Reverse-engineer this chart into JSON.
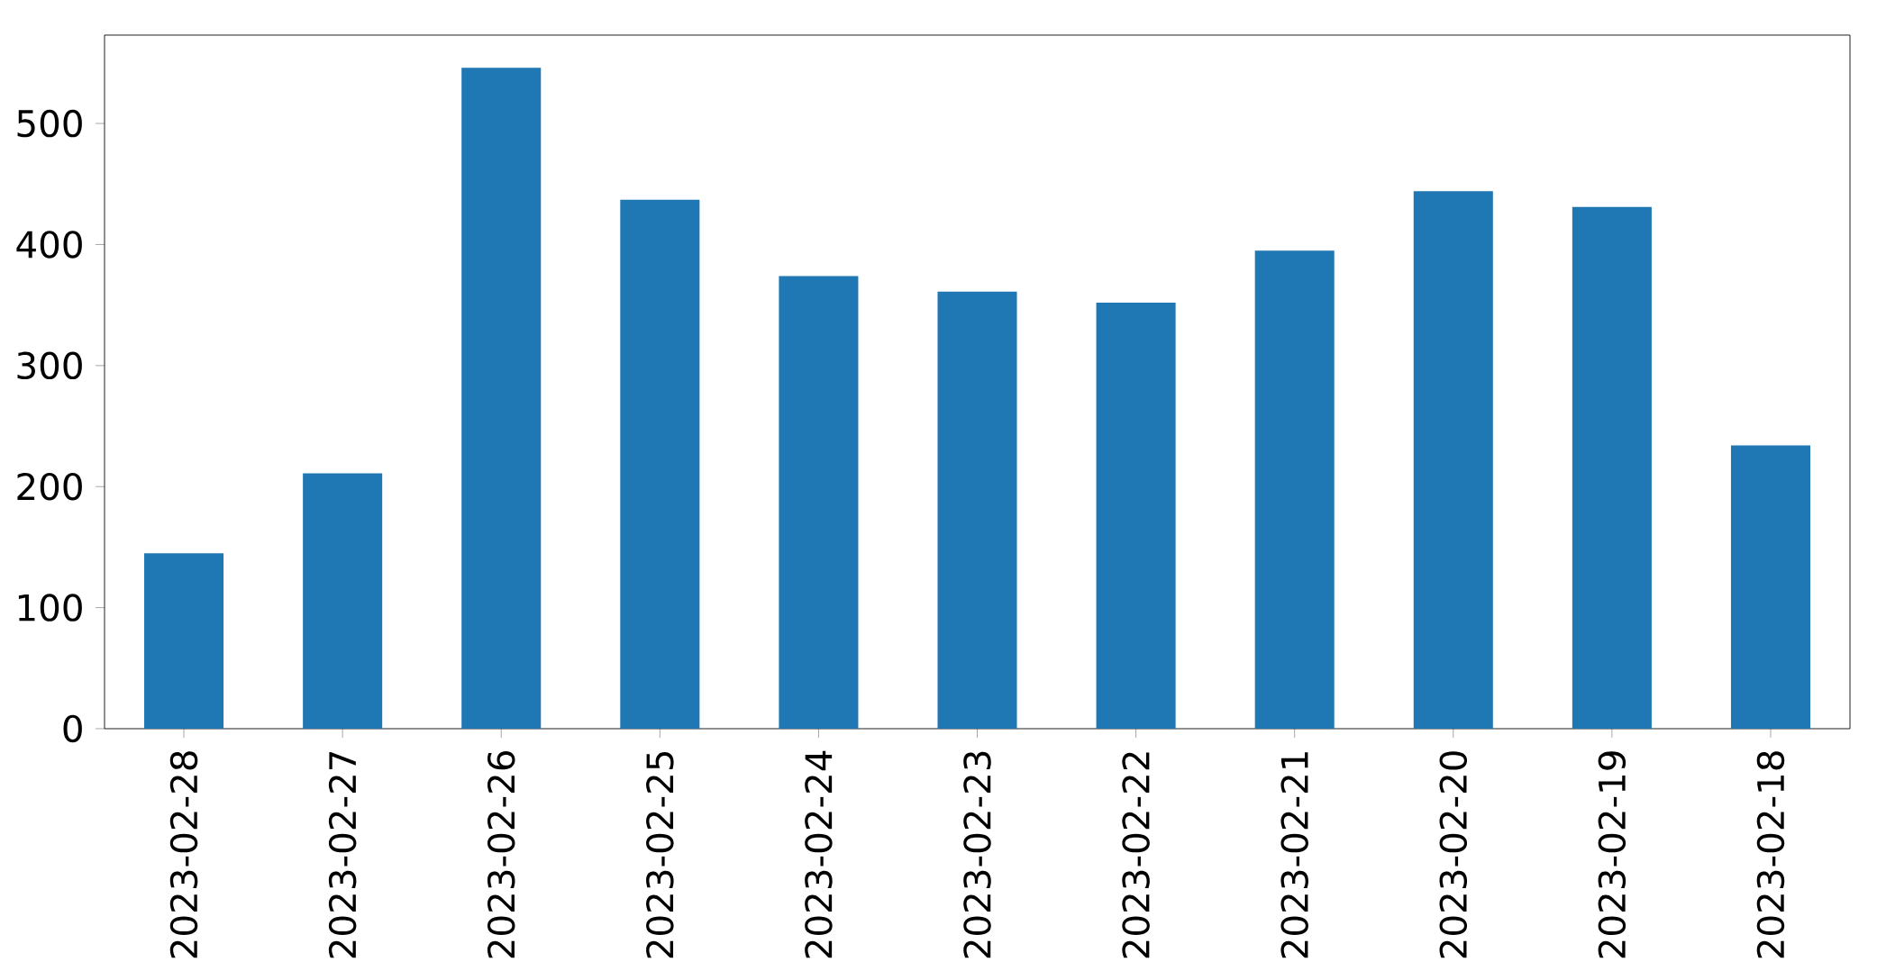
{
  "chart_data": {
    "type": "bar",
    "categories": [
      "2023-02-28",
      "2023-02-27",
      "2023-02-26",
      "2023-02-25",
      "2023-02-24",
      "2023-02-23",
      "2023-02-22",
      "2023-02-21",
      "2023-02-20",
      "2023-02-19",
      "2023-02-18"
    ],
    "values": [
      145,
      211,
      546,
      437,
      374,
      361,
      352,
      395,
      444,
      431,
      234
    ],
    "color": "#1f77b4",
    "ylim": [
      0,
      573
    ],
    "yticks": [
      0,
      100,
      200,
      300,
      400,
      500
    ]
  }
}
